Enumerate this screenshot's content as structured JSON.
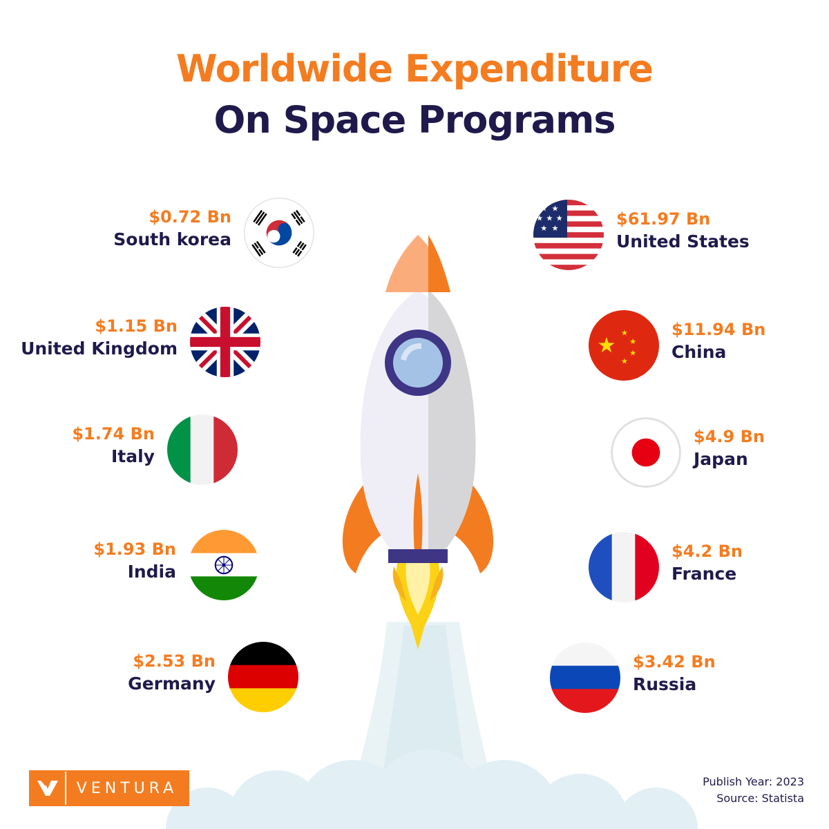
{
  "title_line1": "Worldwide Expenditure",
  "title_line2": "On Space Programs",
  "chart_data": {
    "type": "table",
    "unit": "Bn",
    "currency": "USD",
    "left": [
      {
        "country": "South korea",
        "value_label": "$0.72 Bn",
        "value": 0.72,
        "flag": "south-korea-flag"
      },
      {
        "country": "United Kingdom",
        "value_label": "$1.15 Bn",
        "value": 1.15,
        "flag": "uk-flag"
      },
      {
        "country": "Italy",
        "value_label": "$1.74 Bn",
        "value": 1.74,
        "flag": "italy-flag"
      },
      {
        "country": "India",
        "value_label": "$1.93 Bn",
        "value": 1.93,
        "flag": "india-flag"
      },
      {
        "country": "Germany",
        "value_label": "$2.53 Bn",
        "value": 2.53,
        "flag": "germany-flag"
      }
    ],
    "right": [
      {
        "country": "United States",
        "value_label": "$61.97 Bn",
        "value": 61.97,
        "flag": "usa-flag"
      },
      {
        "country": "China",
        "value_label": "$11.94 Bn",
        "value": 11.94,
        "flag": "china-flag"
      },
      {
        "country": "Japan",
        "value_label": "$4.9 Bn",
        "value": 4.9,
        "flag": "japan-flag"
      },
      {
        "country": "France",
        "value_label": "$4.2 Bn",
        "value": 4.2,
        "flag": "france-flag"
      },
      {
        "country": "Russia",
        "value_label": "$3.42 Bn",
        "value": 3.42,
        "flag": "russia-flag"
      }
    ]
  },
  "logo_text": "VENTURA",
  "publish_year": "Publish Year: 2023",
  "source": "Source: Statista",
  "colors": {
    "accent": "#f47c20",
    "navy": "#1f1a4b"
  }
}
